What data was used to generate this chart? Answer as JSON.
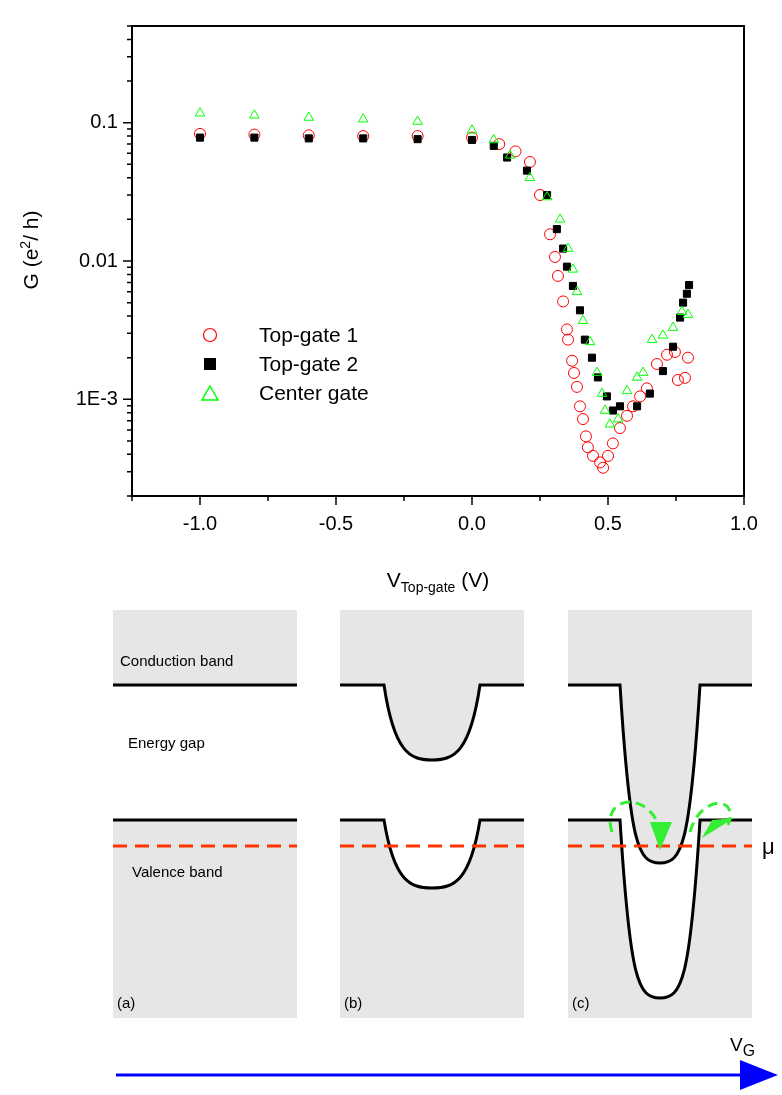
{
  "chart_data": {
    "type": "scatter",
    "xlabel": "V$_{Top-gate}$ (V)",
    "ylabel": "G (e$^{2}$/ h)",
    "log": "y",
    "grid": false,
    "legend": "left",
    "xlim": [
      -1.25,
      1.0
    ],
    "xticks": [
      {
        "value": -1.25,
        "label": null
      },
      {
        "value": -1.0,
        "label": "-1.0"
      },
      {
        "value": -0.75,
        "label": null
      },
      {
        "value": -0.5,
        "label": "-0.5"
      },
      {
        "value": -0.25,
        "label": null
      },
      {
        "value": 0.0,
        "label": "0.0"
      },
      {
        "value": 0.25,
        "label": null
      },
      {
        "value": 0.5,
        "label": "0.5"
      },
      {
        "value": 0.75,
        "label": null
      },
      {
        "value": 1.0,
        "label": "1.0"
      }
    ],
    "ylim": [
      0.0002,
      0.5
    ],
    "yticks": [
      {
        "value": 0.0002,
        "label": null
      },
      {
        "value": 0.0003,
        "label": null
      },
      {
        "value": 0.0004,
        "label": null
      },
      {
        "value": 0.0005,
        "label": null
      },
      {
        "value": 0.0006,
        "label": null
      },
      {
        "value": 0.0007,
        "label": null
      },
      {
        "value": 0.0008,
        "label": null
      },
      {
        "value": 0.0009,
        "label": null
      },
      {
        "value": 0.001,
        "label": "1E-3"
      },
      {
        "value": 0.002,
        "label": null
      },
      {
        "value": 0.003,
        "label": null
      },
      {
        "value": 0.004,
        "label": null
      },
      {
        "value": 0.005,
        "label": null
      },
      {
        "value": 0.006,
        "label": null
      },
      {
        "value": 0.007,
        "label": null
      },
      {
        "value": 0.008,
        "label": null
      },
      {
        "value": 0.009,
        "label": null
      },
      {
        "value": 0.01,
        "label": "0.01"
      },
      {
        "value": 0.02,
        "label": null
      },
      {
        "value": 0.03,
        "label": null
      },
      {
        "value": 0.04,
        "label": null
      },
      {
        "value": 0.05,
        "label": null
      },
      {
        "value": 0.06,
        "label": null
      },
      {
        "value": 0.07,
        "label": null
      },
      {
        "value": 0.08,
        "label": null
      },
      {
        "value": 0.09,
        "label": null
      },
      {
        "value": 0.1,
        "label": "0.1"
      },
      {
        "value": 0.2,
        "label": null
      },
      {
        "value": 0.3,
        "label": null
      },
      {
        "value": 0.4,
        "label": null
      },
      {
        "value": 0.5,
        "label": null
      }
    ],
    "series": [
      {
        "name": "Top-gate 1",
        "color": "#ff0000",
        "marker": "circle",
        "x": [
          -1.0,
          -0.8,
          -0.6,
          -0.4,
          -0.2,
          0.0,
          0.1,
          0.16,
          0.213,
          0.25,
          0.287,
          0.305,
          0.316,
          0.335,
          0.349,
          0.353,
          0.368,
          0.375,
          0.386,
          0.397,
          0.408,
          0.419,
          0.426,
          0.445,
          0.471,
          0.482,
          0.5,
          0.518,
          0.544,
          0.57,
          0.592,
          0.618,
          0.643,
          0.68,
          0.717,
          0.746,
          0.757,
          0.783,
          0.794
        ],
        "values": [
          0.083,
          0.082,
          0.081,
          0.08,
          0.08,
          0.078,
          0.07,
          0.062,
          0.052,
          0.03,
          0.0156,
          0.0107,
          0.0078,
          0.0051,
          0.0032,
          0.0027,
          0.0019,
          0.00155,
          0.00123,
          0.00089,
          0.00072,
          0.00054,
          0.00045,
          0.00039,
          0.00035,
          0.00032,
          0.00039,
          0.00048,
          0.00062,
          0.00076,
          0.00089,
          0.00105,
          0.0012,
          0.0018,
          0.0021,
          0.0022,
          0.00138,
          0.00143,
          0.002
        ]
      },
      {
        "name": "Top-gate 2",
        "color": "#000000",
        "marker": "square",
        "x": [
          -1.0,
          -0.8,
          -0.6,
          -0.4,
          -0.2,
          0.0,
          0.08,
          0.129,
          0.202,
          0.276,
          0.312,
          0.335,
          0.349,
          0.371,
          0.397,
          0.415,
          0.441,
          0.463,
          0.496,
          0.518,
          0.544,
          0.607,
          0.654,
          0.702,
          0.739,
          0.765,
          0.776,
          0.79,
          0.798
        ],
        "values": [
          0.078,
          0.078,
          0.077,
          0.077,
          0.076,
          0.075,
          0.068,
          0.056,
          0.045,
          0.03,
          0.017,
          0.0123,
          0.0091,
          0.0066,
          0.0044,
          0.0027,
          0.002,
          0.00144,
          0.00105,
          0.00083,
          0.00089,
          0.00089,
          0.0011,
          0.0016,
          0.0024,
          0.0039,
          0.005,
          0.0058,
          0.0067
        ]
      },
      {
        "name": "Center gate",
        "color": "#00ff00",
        "marker": "triangle",
        "x": [
          -1.0,
          -0.8,
          -0.6,
          -0.4,
          -0.2,
          0.0,
          0.08,
          0.14,
          0.213,
          0.276,
          0.324,
          0.353,
          0.371,
          0.386,
          0.408,
          0.434,
          0.46,
          0.478,
          0.489,
          0.507,
          0.537,
          0.57,
          0.607,
          0.629,
          0.662,
          0.702,
          0.739,
          0.772,
          0.794
        ],
        "values": [
          0.117,
          0.113,
          0.109,
          0.106,
          0.102,
          0.088,
          0.075,
          0.058,
          0.04,
          0.029,
          0.02,
          0.0123,
          0.0087,
          0.006,
          0.0037,
          0.0026,
          0.00156,
          0.0011,
          0.00083,
          0.00066,
          0.00072,
          0.00115,
          0.00144,
          0.00156,
          0.0027,
          0.0029,
          0.0033,
          0.0043,
          0.0041
        ]
      }
    ],
    "annotations": [
      "Conduction band",
      "Energy gap",
      "Valence band",
      "(a)",
      "(b)",
      "(c)",
      "μ",
      "V$_{G}$"
    ]
  }
}
